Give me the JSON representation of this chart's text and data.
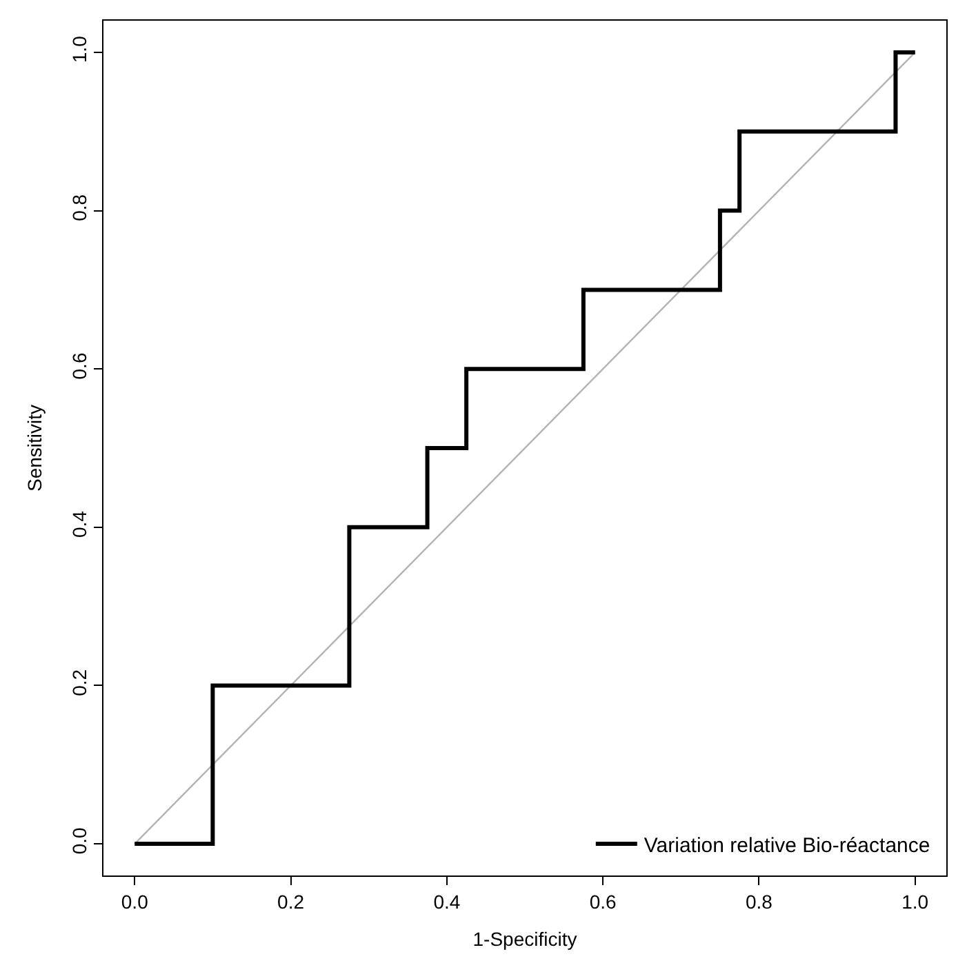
{
  "chart_data": {
    "type": "step",
    "xlabel": "1-Specificity",
    "ylabel": "Sensitivity",
    "xlim": [
      -0.04,
      1.04
    ],
    "ylim": [
      -0.04,
      1.04
    ],
    "xticks": [
      {
        "value": 0,
        "label": "0.0"
      },
      {
        "value": 0.2,
        "label": "0.2"
      },
      {
        "value": 0.4,
        "label": "0.4"
      },
      {
        "value": 0.6,
        "label": "0.6"
      },
      {
        "value": 0.8,
        "label": "0.8"
      },
      {
        "value": 1,
        "label": "1.0"
      }
    ],
    "yticks": [
      {
        "value": 0,
        "label": "0.0"
      },
      {
        "value": 0.2,
        "label": "0.2"
      },
      {
        "value": 0.4,
        "label": "0.4"
      },
      {
        "value": 0.6,
        "label": "0.6"
      },
      {
        "value": 0.8,
        "label": "0.8"
      },
      {
        "value": 1,
        "label": "1.0"
      }
    ],
    "legend": "bottom right",
    "marker": "none",
    "series": [
      {
        "type": "line",
        "color": "#b3b3b3",
        "x": [
          0,
          1
        ],
        "values": [
          0,
          1
        ]
      },
      {
        "name": "Variation relative Bio-réactance",
        "color": "#000000",
        "x": [
          0,
          0.1,
          0.1,
          0.275,
          0.275,
          0.375,
          0.375,
          0.425,
          0.425,
          0.575,
          0.575,
          0.75,
          0.75,
          0.775,
          0.775,
          0.975,
          0.975,
          1.0
        ],
        "values": [
          0,
          0,
          0.2,
          0.2,
          0.4,
          0.4,
          0.5,
          0.5,
          0.6,
          0.6,
          0.7,
          0.7,
          0.8,
          0.8,
          0.9,
          0.9,
          1.0,
          1.0
        ]
      }
    ]
  }
}
